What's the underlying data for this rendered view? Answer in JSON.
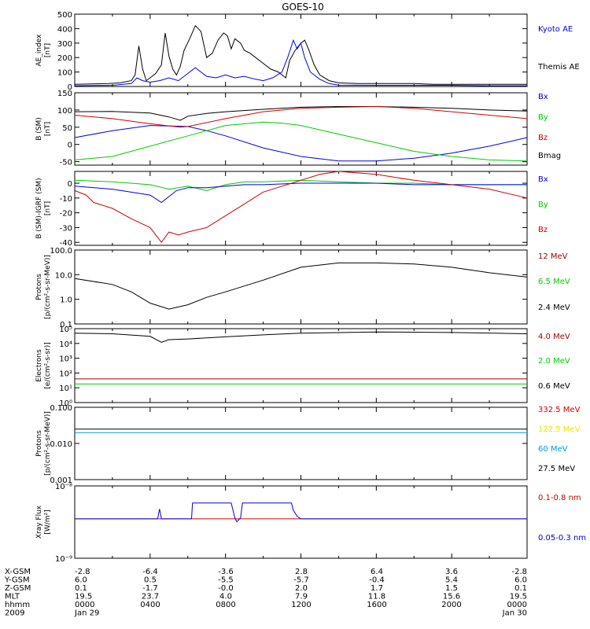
{
  "title": "GOES-10",
  "colors": {
    "black": "#000000",
    "blue": "#0000e0",
    "red": "#d00000",
    "green": "#00cc00",
    "darkred": "#990000",
    "yellow": "#e8e800",
    "cyan": "#0099e6"
  },
  "chart_data": [
    {
      "type": "line",
      "ylabel": [
        "AE_index",
        "[nT]"
      ],
      "ylim": [
        0,
        500
      ],
      "yticks": [
        "0",
        "100",
        "200",
        "300",
        "400",
        "500"
      ],
      "legend": [
        {
          "label": "Kyoto AE",
          "color": "#0000e0"
        },
        {
          "label": "Themis AE",
          "color": "#000000"
        }
      ],
      "series": [
        {
          "name": "Themis AE",
          "color": "#000000",
          "x": [
            0,
            1.8,
            2.4,
            3.0,
            3.2,
            3.4,
            3.6,
            3.8,
            4.0,
            4.3,
            4.6,
            4.8,
            5.0,
            5.2,
            5.4,
            5.6,
            5.8,
            6.1,
            6.4,
            6.7,
            7.0,
            7.3,
            7.6,
            7.9,
            8.1,
            8.3,
            8.5,
            8.8,
            9.0,
            9.3,
            9.6,
            10.0,
            10.4,
            10.8,
            11.2,
            11.4,
            11.7,
            12.0,
            12.2,
            12.4,
            12.7,
            13.0,
            13.5,
            14.0,
            15,
            16,
            17,
            18,
            19,
            20,
            21,
            22,
            23,
            24
          ],
          "y": [
            15,
            20,
            25,
            40,
            80,
            280,
            120,
            40,
            60,
            90,
            150,
            370,
            210,
            120,
            80,
            140,
            250,
            330,
            420,
            380,
            200,
            230,
            320,
            370,
            350,
            260,
            330,
            300,
            250,
            230,
            200,
            160,
            120,
            100,
            60,
            180,
            250,
            300,
            320,
            260,
            150,
            80,
            40,
            25,
            20,
            20,
            20,
            20,
            15,
            15,
            15,
            15,
            15,
            15
          ]
        },
        {
          "name": "Kyoto AE",
          "color": "#0000e0",
          "x": [
            0,
            2,
            3.0,
            3.3,
            3.6,
            4.0,
            4.5,
            5.0,
            5.5,
            6.0,
            6.4,
            6.7,
            7.0,
            7.5,
            8.0,
            8.5,
            9.0,
            9.6,
            10.0,
            10.5,
            11.0,
            11.3,
            11.6,
            11.8,
            12.0,
            12.2,
            12.5,
            13,
            13.5,
            14,
            16,
            18,
            20,
            22,
            24
          ],
          "y": [
            5,
            8,
            20,
            60,
            40,
            30,
            40,
            60,
            40,
            90,
            130,
            100,
            70,
            60,
            80,
            60,
            70,
            50,
            40,
            60,
            100,
            200,
            320,
            260,
            300,
            200,
            100,
            50,
            20,
            10,
            8,
            8,
            8,
            5,
            5
          ]
        }
      ]
    },
    {
      "type": "line",
      "ylabel": [
        "B (SM)",
        "[nT]"
      ],
      "ylim": [
        -60,
        150
      ],
      "yticks": [
        "-50",
        "0",
        "50",
        "100",
        "150"
      ],
      "legend": [
        {
          "label": "Bx",
          "color": "#0000e0"
        },
        {
          "label": "By",
          "color": "#00cc00"
        },
        {
          "label": "Bz",
          "color": "#d00000"
        },
        {
          "label": "Bmag",
          "color": "#000000"
        }
      ],
      "series": [
        {
          "name": "Bmag",
          "color": "#000000",
          "x": [
            0,
            2,
            4,
            5,
            5.6,
            6,
            7,
            8,
            10,
            12,
            14,
            16,
            18,
            20,
            22,
            24
          ],
          "y": [
            95,
            96,
            91,
            80,
            70,
            82,
            90,
            95,
            102,
            108,
            110,
            110,
            108,
            105,
            100,
            97
          ]
        },
        {
          "name": "Bx",
          "color": "#0000e0",
          "x": [
            0,
            2,
            4,
            6,
            7,
            8,
            10,
            12,
            14,
            16,
            18,
            20,
            22,
            24
          ],
          "y": [
            20,
            40,
            55,
            52,
            40,
            25,
            -10,
            -35,
            -48,
            -48,
            -40,
            -25,
            -5,
            20
          ]
        },
        {
          "name": "By",
          "color": "#00cc00",
          "x": [
            0,
            2,
            4,
            6,
            8,
            10,
            11,
            12,
            14,
            16,
            18,
            20,
            22,
            24
          ],
          "y": [
            -45,
            -35,
            -5,
            25,
            55,
            65,
            62,
            55,
            30,
            5,
            -20,
            -35,
            -45,
            -48
          ]
        },
        {
          "name": "Bz",
          "color": "#d00000",
          "x": [
            0,
            2,
            4,
            5.6,
            6,
            8,
            10,
            12,
            14,
            16,
            18,
            20,
            22,
            24
          ],
          "y": [
            85,
            75,
            60,
            50,
            52,
            75,
            95,
            105,
            108,
            110,
            105,
            95,
            85,
            75
          ]
        }
      ]
    },
    {
      "type": "line",
      "ylabel": [
        "B (SM)-IGRF (SM)",
        "[nT]"
      ],
      "ylim": [
        -42,
        8
      ],
      "yticks": [
        "-40",
        "-30",
        "-20",
        "-10",
        "0"
      ],
      "legend": [
        {
          "label": "Bx",
          "color": "#0000e0"
        },
        {
          "label": "By",
          "color": "#00cc00"
        },
        {
          "label": "Bz",
          "color": "#d00000"
        }
      ],
      "series": [
        {
          "name": "By",
          "color": "#00cc00",
          "x": [
            0,
            2,
            4,
            5,
            6,
            7,
            8,
            9,
            10,
            12,
            14,
            16,
            18,
            20,
            22,
            24
          ],
          "y": [
            2,
            1,
            -1,
            -4,
            -2,
            -5,
            -1,
            1,
            1,
            2,
            1,
            0,
            0,
            -1,
            -1,
            -1
          ]
        },
        {
          "name": "Bx",
          "color": "#0000e0",
          "x": [
            0,
            2,
            4,
            4.6,
            5.0,
            5.4,
            6,
            7,
            8,
            9,
            10,
            12,
            14,
            16,
            18,
            20,
            22,
            24
          ],
          "y": [
            -2,
            -4,
            -8,
            -13,
            -9,
            -5,
            -3,
            -3,
            -2,
            -1,
            -1,
            0,
            0,
            0,
            -1,
            -1,
            -1,
            -1
          ]
        },
        {
          "name": "Bz",
          "color": "#d00000",
          "x": [
            0,
            0.6,
            1,
            2,
            3,
            4,
            4.6,
            5,
            5.5,
            6,
            7,
            8,
            9,
            10,
            11,
            12,
            13,
            14,
            16,
            18,
            20,
            22,
            24
          ],
          "y": [
            -5,
            -8,
            -13,
            -17,
            -24,
            -30,
            -40,
            -33,
            -35,
            -33,
            -30,
            -22,
            -14,
            -6,
            -2,
            2,
            6,
            8,
            6,
            2,
            -1,
            -4,
            -10
          ]
        }
      ]
    },
    {
      "type": "line",
      "ylabel": [
        "Protons",
        "[p/(cm²-s-sr-MeV)]"
      ],
      "yscale": "log",
      "ylim": [
        0.1,
        100
      ],
      "yticks": [
        "0.1",
        "1.0",
        "10.0",
        "100.0"
      ],
      "legend": [
        {
          "label": "12 MeV",
          "color": "#990000"
        },
        {
          "label": "6.5 MeV",
          "color": "#00cc00"
        },
        {
          "label": "2.4 MeV",
          "color": "#000000"
        }
      ],
      "series": [
        {
          "name": "2.4 MeV",
          "color": "#000000",
          "x": [
            0,
            2,
            3,
            4,
            5,
            6,
            7,
            8,
            10,
            12,
            14,
            16,
            18,
            20,
            22,
            24
          ],
          "y": [
            7,
            4,
            2,
            0.7,
            0.4,
            0.6,
            1.2,
            2,
            6,
            20,
            30,
            30,
            27,
            20,
            12,
            8
          ]
        }
      ]
    },
    {
      "type": "line",
      "ylabel": [
        "Electrons",
        "[e/(cm²-s-sr)]"
      ],
      "yscale": "log",
      "ylim": [
        1,
        100000
      ],
      "yticks": [
        "10⁰",
        "10¹",
        "10²",
        "10³",
        "10⁴",
        "10⁵"
      ],
      "legend": [
        {
          "label": "4.0 MeV",
          "color": "#990000"
        },
        {
          "label": "2.0 MeV",
          "color": "#00cc00"
        },
        {
          "label": "0.6 MeV",
          "color": "#000000"
        }
      ],
      "series": [
        {
          "name": "0.6 MeV",
          "color": "#000000",
          "x": [
            0,
            2,
            4,
            4.6,
            5,
            6,
            8,
            10,
            12,
            16,
            20,
            24
          ],
          "y": [
            50000,
            45000,
            30000,
            12000,
            18000,
            20000,
            28000,
            38000,
            50000,
            60000,
            55000,
            45000
          ]
        },
        {
          "name": "4.0 MeV",
          "color": "#990000",
          "x": [
            0,
            24
          ],
          "y": [
            40,
            40
          ]
        },
        {
          "name": "2.0 MeV",
          "color": "#00cc00",
          "x": [
            0,
            24
          ],
          "y": [
            18,
            18
          ]
        }
      ]
    },
    {
      "type": "line",
      "ylabel": [
        "Protons",
        "[p/(cm²-s-sr-MeV)]"
      ],
      "yscale": "log",
      "ylim": [
        0.001,
        0.1
      ],
      "yticks": [
        "0.001",
        "0.010",
        "0.100"
      ],
      "legend": [
        {
          "label": "332.5 MeV",
          "color": "#d00000"
        },
        {
          "label": "122.5 MeV",
          "color": "#e8e800"
        },
        {
          "label": "60 MeV",
          "color": "#0099e6"
        },
        {
          "label": "27.5 MeV",
          "color": "#000000"
        }
      ],
      "series": [
        {
          "name": "27.5 MeV",
          "color": "#000000",
          "x": [
            0,
            24
          ],
          "y": [
            0.025,
            0.025
          ]
        },
        {
          "name": "60 MeV",
          "color": "#0099e6",
          "x": [
            0,
            24
          ],
          "y": [
            0.02,
            0.02
          ]
        }
      ]
    },
    {
      "type": "line",
      "ylabel": [
        "Xray  Flux",
        "[W/m²]"
      ],
      "yscale": "log",
      "ylim": [
        1e-09,
        1e-08
      ],
      "yticks": [
        "10⁻⁹",
        "10⁻⁸"
      ],
      "legend": [
        {
          "label": "0.1-0.8 nm",
          "color": "#d00000"
        },
        {
          "label": "0.05-0.3 nm",
          "color": "#0000e0"
        }
      ],
      "series": [
        {
          "name": "0.1-0.8 nm",
          "color": "#d00000",
          "x": [
            0,
            24
          ],
          "y": [
            3.5e-09,
            3.5e-09
          ]
        },
        {
          "name": "0.05-0.3 nm",
          "color": "#0000e0",
          "x": [
            0,
            4.4,
            4.5,
            4.6,
            4.7,
            6.2,
            6.25,
            8.3,
            8.5,
            8.6,
            8.8,
            8.9,
            11.5,
            11.6,
            11.8,
            12.0,
            24
          ],
          "y": [
            3.5e-09,
            3.5e-09,
            4.8e-09,
            3.5e-09,
            3.5e-09,
            3.5e-09,
            5.8e-09,
            5.8e-09,
            3.6e-09,
            3.2e-09,
            3.6e-09,
            5.8e-09,
            5.8e-09,
            4.6e-09,
            3.8e-09,
            3.5e-09,
            3.5e-09
          ]
        }
      ]
    }
  ],
  "bottom_axis": {
    "rows": [
      {
        "label": "X-GSM",
        "values": [
          "-2.8",
          "-6.4",
          "-3.6",
          "2.8",
          "6.4",
          "3.6",
          "-2.8"
        ]
      },
      {
        "label": "Y-GSM",
        "values": [
          "6.0",
          "0.5",
          "-5.5",
          "-5.7",
          "-0.4",
          "5.4",
          "6.0"
        ]
      },
      {
        "label": "Z-GSM",
        "values": [
          "0.1",
          "-1.7",
          "-0.0",
          "2.0",
          "1.7",
          "1.5",
          "0.1"
        ]
      },
      {
        "label": "MLT",
        "values": [
          "19.5",
          "23.7",
          "4.0",
          "7.9",
          "11.8",
          "15.6",
          "19.5"
        ]
      },
      {
        "label": "hhmm",
        "values": [
          "0000",
          "0400",
          "0800",
          "1200",
          "1600",
          "2000",
          "0000"
        ]
      },
      {
        "label": "2009",
        "values": [
          "Jan 29",
          "",
          "",
          "",
          "",
          "",
          "Jan 30"
        ]
      }
    ]
  }
}
